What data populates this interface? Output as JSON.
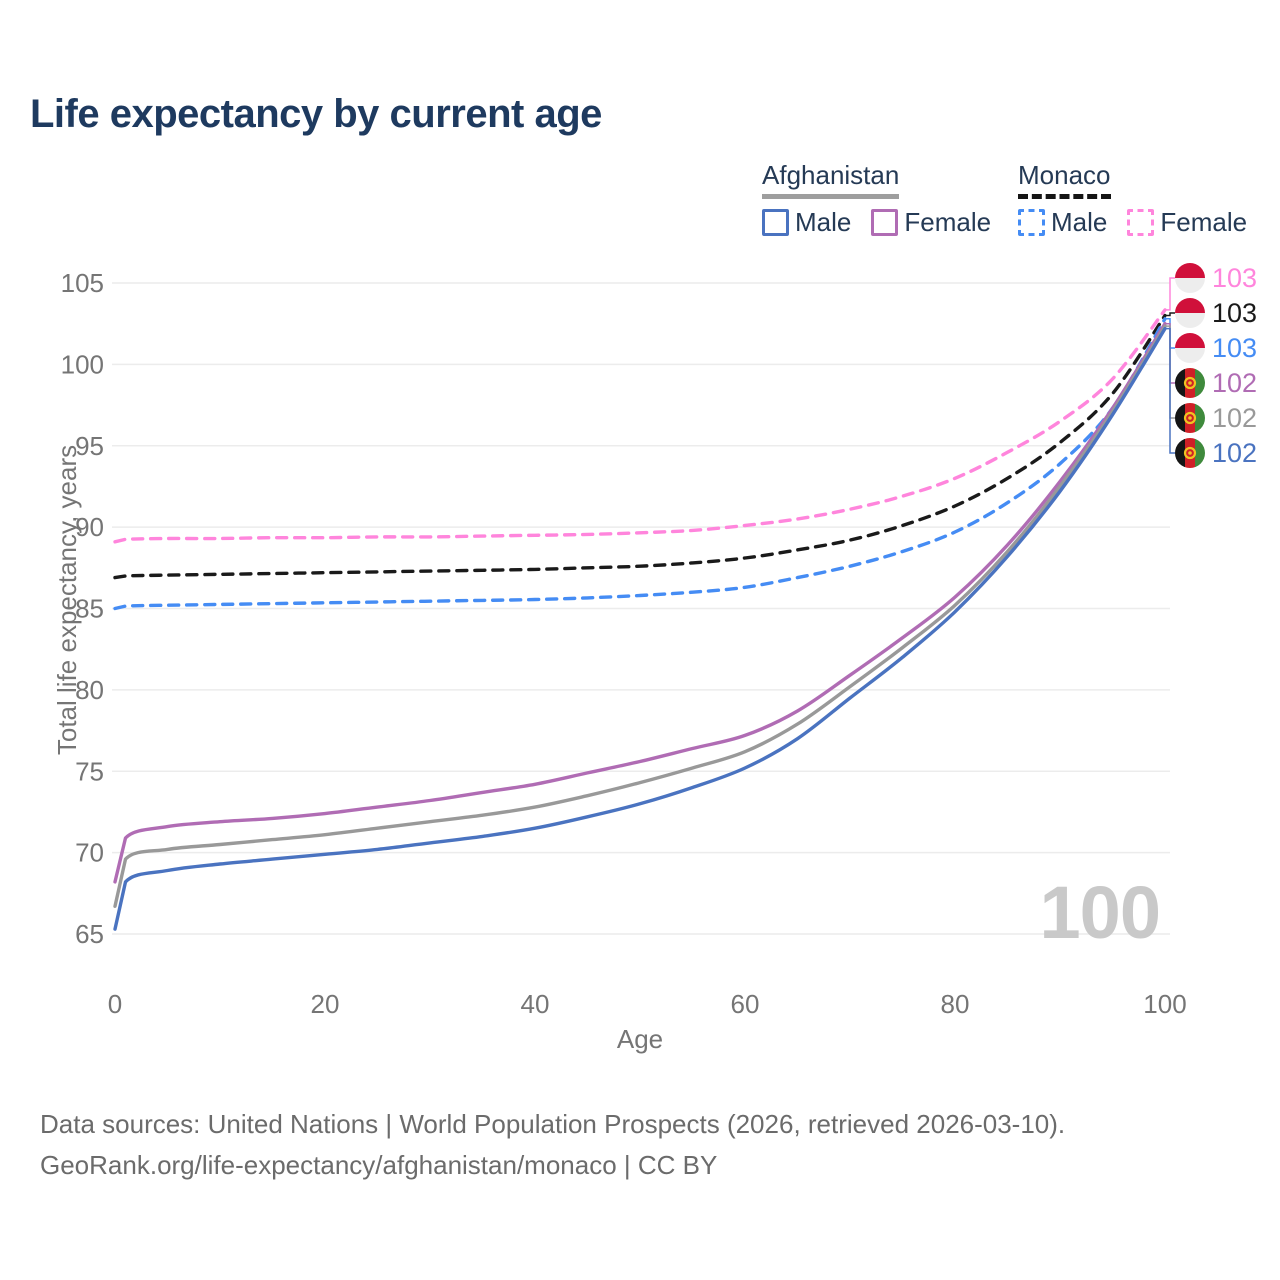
{
  "title": "Life expectancy by current age",
  "watermark": "100",
  "legend": {
    "afghanistan": {
      "label": "Afghanistan",
      "male": "Male",
      "female": "Female"
    },
    "monaco": {
      "label": "Monaco",
      "male": "Male",
      "female": "Female"
    }
  },
  "footer": {
    "line1": "Data sources: United Nations | World Population Prospects (2026, retrieved 2026-03-10).",
    "line2": "GeoRank.org/life-expectancy/afghanistan/monaco | CC BY"
  },
  "colors": {
    "title": "#1e3a5f",
    "legend_text": "#253a55",
    "axis_text": "#757575",
    "grid": "#ececec",
    "watermark": "#c9c9c9",
    "footer_text": "#6b6b6b",
    "afghanistan_underline": "#9e9e9e",
    "monaco_underline": "#151515"
  },
  "flags": {
    "monaco": {
      "top": "#d0103a",
      "bottom": "#ededed"
    },
    "afghanistan": {
      "stripes": [
        "#151515",
        "#cf2027",
        "#3f8a3c"
      ],
      "emblem": "#f0c421"
    }
  },
  "chart_data": {
    "type": "line",
    "title": "Life expectancy by current age",
    "xlabel": "Age",
    "ylabel": "Total life expectancy, years",
    "xlim": [
      0,
      100
    ],
    "ylim": [
      65,
      105
    ],
    "xticks": [
      0,
      20,
      40,
      60,
      80,
      100
    ],
    "yticks": [
      65,
      70,
      75,
      80,
      85,
      90,
      95,
      100,
      105
    ],
    "grid": "horizontal",
    "legend_position": "top-right",
    "x": [
      0,
      1,
      5,
      10,
      15,
      20,
      25,
      30,
      35,
      40,
      45,
      50,
      55,
      60,
      65,
      70,
      75,
      80,
      85,
      90,
      95,
      100
    ],
    "series": [
      {
        "id": "monaco-female",
        "name": "Monaco Female",
        "color": "#ff85dc",
        "dash": true,
        "flag": "monaco",
        "end_label": "103",
        "values": [
          89.1,
          89.25,
          89.3,
          89.3,
          89.35,
          89.35,
          89.4,
          89.4,
          89.45,
          89.5,
          89.55,
          89.65,
          89.8,
          90.1,
          90.5,
          91.1,
          91.9,
          93.0,
          94.6,
          96.5,
          99.1,
          103.35
        ]
      },
      {
        "id": "monaco-total",
        "name": "Monaco Both sexes",
        "color": "#1a1a1a",
        "dash": true,
        "flag": "monaco",
        "end_label": "103",
        "values": [
          86.9,
          87.0,
          87.05,
          87.1,
          87.15,
          87.2,
          87.25,
          87.3,
          87.35,
          87.4,
          87.5,
          87.6,
          87.8,
          88.1,
          88.6,
          89.2,
          90.1,
          91.3,
          93.0,
          95.2,
          98.2,
          103.0
        ]
      },
      {
        "id": "monaco-male",
        "name": "Monaco Male",
        "color": "#458cf4",
        "dash": true,
        "flag": "monaco",
        "end_label": "103",
        "values": [
          85.0,
          85.15,
          85.2,
          85.25,
          85.3,
          85.35,
          85.4,
          85.45,
          85.5,
          85.55,
          85.65,
          85.8,
          86.0,
          86.3,
          86.9,
          87.6,
          88.5,
          89.7,
          91.5,
          93.9,
          97.3,
          102.8
        ]
      },
      {
        "id": "afghanistan-female",
        "name": "Afghanistan Female",
        "color": "#b06cb4",
        "dash": false,
        "flag": "afghanistan",
        "end_label": "102",
        "values": [
          68.2,
          70.9,
          71.6,
          71.9,
          72.1,
          72.4,
          72.8,
          73.2,
          73.7,
          74.2,
          74.9,
          75.6,
          76.4,
          77.2,
          78.7,
          80.9,
          83.2,
          85.7,
          88.9,
          92.8,
          97.3,
          102.5
        ]
      },
      {
        "id": "afghanistan-total",
        "name": "Afghanistan Both sexes",
        "color": "#999999",
        "dash": false,
        "flag": "afghanistan",
        "end_label": "102",
        "values": [
          66.7,
          69.6,
          70.2,
          70.5,
          70.8,
          71.1,
          71.5,
          71.9,
          72.3,
          72.8,
          73.5,
          74.3,
          75.2,
          76.2,
          77.9,
          80.2,
          82.6,
          85.2,
          88.5,
          92.5,
          97.1,
          102.35
        ]
      },
      {
        "id": "afghanistan-male",
        "name": "Afghanistan Male",
        "color": "#4a73c0",
        "dash": false,
        "flag": "afghanistan",
        "end_label": "102",
        "values": [
          65.3,
          68.2,
          68.9,
          69.3,
          69.6,
          69.9,
          70.2,
          70.6,
          71.0,
          71.5,
          72.2,
          73.0,
          74.0,
          75.2,
          77.0,
          79.5,
          82.0,
          84.8,
          88.2,
          92.2,
          96.9,
          102.2
        ]
      }
    ]
  }
}
